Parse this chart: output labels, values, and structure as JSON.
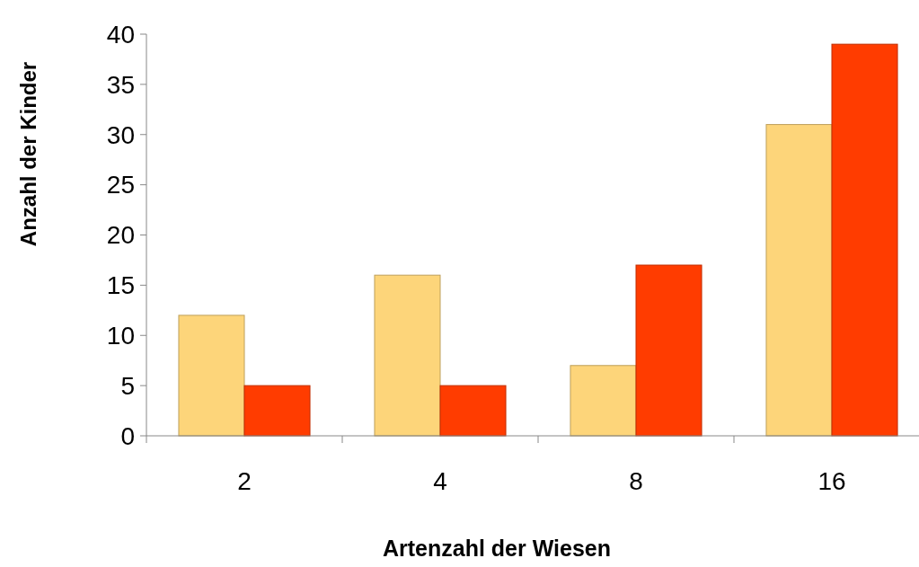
{
  "chart_data": {
    "type": "bar",
    "xlabel": "Artenzahl der Wiesen",
    "ylabel": "Anzahl der Kinder",
    "categories": [
      "2",
      "4",
      "8",
      "16"
    ],
    "series": [
      {
        "color": "#fdd57a",
        "values": [
          12,
          16,
          7,
          31
        ]
      },
      {
        "color": "#ff3c00",
        "values": [
          5,
          5,
          17,
          39
        ]
      }
    ],
    "ylim": [
      0,
      40
    ],
    "yticks": [
      0,
      5,
      10,
      15,
      20,
      25,
      30,
      35,
      40
    ],
    "grid": false
  }
}
